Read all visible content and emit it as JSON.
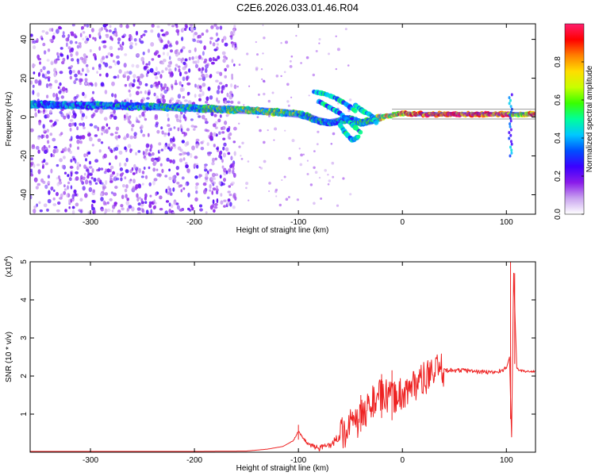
{
  "title": "C2E6.2026.033.01.46.R04",
  "chart_data": [
    {
      "type": "heatmap",
      "xlabel": "Height of straight line (km)",
      "ylabel": "Frequency (Hz)",
      "xlim": [
        -358,
        128
      ],
      "ylim": [
        -50,
        48
      ],
      "xticks": [
        -300,
        -200,
        -100,
        0,
        100
      ],
      "yticks": [
        -40,
        -20,
        0,
        20,
        40
      ],
      "grid": false,
      "colorbar": {
        "label": "Normalized spectral amplitude",
        "range": [
          0,
          1
        ],
        "ticks": [
          0.0,
          0.2,
          0.4,
          0.6,
          0.8
        ],
        "colormap": [
          "#ffffff",
          "#c9a3ef",
          "#8a1bea",
          "#3b00ff",
          "#0050ff",
          "#00c8ff",
          "#00ff9a",
          "#38ff00",
          "#c8ff00",
          "#ffdd00",
          "#ff8000",
          "#ff0000",
          "#ff1e6e"
        ]
      },
      "ridge": {
        "x": [
          -358,
          -300,
          -250,
          -200,
          -150,
          -120,
          -100,
          -90,
          -80,
          -70,
          -60,
          -50,
          -40,
          -30,
          -20,
          -10,
          0,
          10,
          20,
          40,
          60,
          80,
          90,
          100,
          110,
          128
        ],
        "frequency": [
          6.5,
          6,
          5.5,
          4.5,
          3.5,
          2.5,
          1.5,
          0,
          -2,
          -3,
          -2,
          -1,
          -3,
          -2,
          0,
          1,
          2,
          1.5,
          1.5,
          1.5,
          1.5,
          1.5,
          1.5,
          1.5,
          1.5,
          1.5
        ],
        "amplitude": [
          0.35,
          0.38,
          0.42,
          0.48,
          0.58,
          0.55,
          0.5,
          0.45,
          0.45,
          0.4,
          0.4,
          0.4,
          0.45,
          0.5,
          0.65,
          0.7,
          0.75,
          0.8,
          0.88,
          0.92,
          0.9,
          0.9,
          0.85,
          0.9,
          0.6,
          0.9
        ]
      },
      "scatter_extent": {
        "x_from": -358,
        "x_to": -160,
        "frequency": [
          -50,
          48
        ],
        "amplitude_range": [
          0.05,
          0.25
        ]
      }
    },
    {
      "type": "line",
      "xlabel": "Height of straight line (km)",
      "ylabel": "SNR (10 * v/v)",
      "multiplier_label": "(x10",
      "multiplier_exponent": "4",
      "multiplier_suffix": ")",
      "xlim": [
        -358,
        128
      ],
      "ylim": [
        0,
        5
      ],
      "xticks": [
        -300,
        -200,
        -100,
        0,
        100
      ],
      "yticks": [
        1,
        2,
        3,
        4,
        5
      ],
      "color": "#ee2222",
      "grid": false,
      "series": [
        {
          "x": [
            -358,
            -300,
            -250,
            -200,
            -150,
            -130,
            -115,
            -105,
            -100,
            -95,
            -90,
            -85,
            -80,
            -75,
            -70,
            -65,
            -60,
            -55,
            -50,
            -45,
            -40,
            -35,
            -30,
            -25,
            -20,
            -15,
            -10,
            -5,
            0,
            5,
            10,
            15,
            20,
            25,
            30,
            35,
            40,
            50,
            60,
            70,
            80,
            90,
            95,
            100,
            103,
            105,
            107,
            110,
            113,
            118,
            128
          ],
          "values": [
            0.02,
            0.02,
            0.02,
            0.02,
            0.03,
            0.08,
            0.15,
            0.3,
            0.55,
            0.35,
            0.2,
            0.15,
            0.1,
            0.15,
            0.2,
            0.3,
            0.45,
            0.55,
            0.7,
            0.75,
            0.9,
            1.1,
            1.3,
            1.4,
            1.5,
            1.45,
            1.4,
            1.5,
            1.55,
            1.6,
            1.75,
            1.85,
            1.9,
            2.0,
            2.08,
            2.13,
            2.15,
            2.15,
            2.15,
            2.12,
            2.1,
            2.1,
            2.15,
            2.2,
            2.5,
            0.4,
            4.7,
            2.2,
            2.15,
            2.12,
            2.12
          ],
          "spikes": [
            {
              "x": -100,
              "value": 0.72
            },
            {
              "x": -40,
              "value": 1.5
            },
            {
              "x": -20,
              "value": 2.05
            },
            {
              "x": -10,
              "value": 2.15
            },
            {
              "x": 104,
              "value": 5.0
            },
            {
              "x": 108,
              "value": 4.7
            }
          ]
        }
      ]
    }
  ]
}
